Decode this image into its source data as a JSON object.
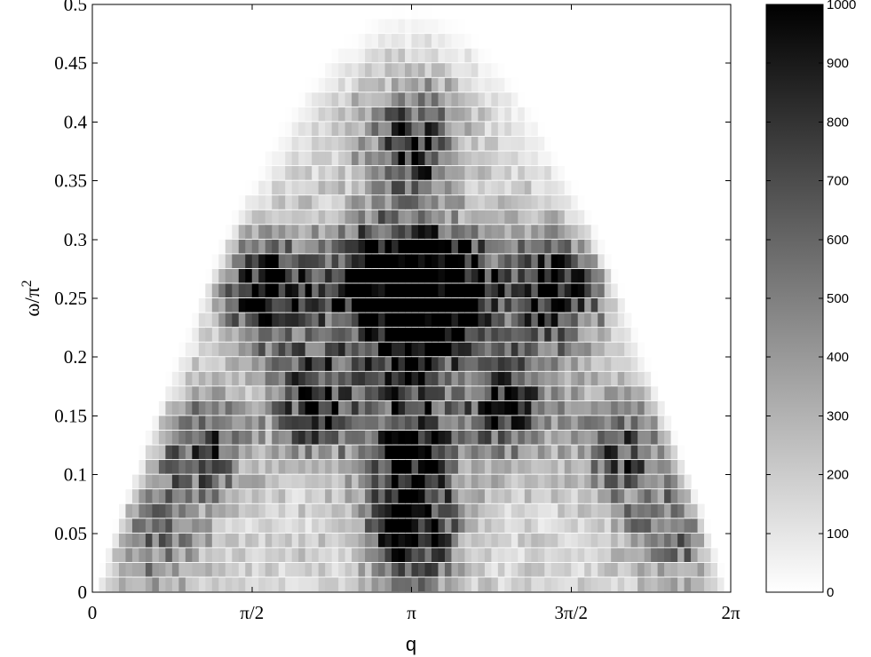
{
  "chart_data": {
    "type": "heatmap",
    "title": "",
    "xlabel": "q",
    "ylabel_base": "ω/π",
    "ylabel_exponent": "2",
    "xlim": [
      0,
      6.283185307
    ],
    "ylim": [
      0,
      0.5
    ],
    "x_ticks": [
      {
        "value": 0,
        "label": "0"
      },
      {
        "value": 1.570796327,
        "label": "π/2"
      },
      {
        "value": 3.141592654,
        "label": "π"
      },
      {
        "value": 4.71238898,
        "label": "3π/2"
      },
      {
        "value": 6.283185307,
        "label": "2π"
      }
    ],
    "y_ticks": [
      {
        "value": 0,
        "label": "0"
      },
      {
        "value": 0.05,
        "label": "0.05"
      },
      {
        "value": 0.1,
        "label": "0.1"
      },
      {
        "value": 0.15,
        "label": "0.15"
      },
      {
        "value": 0.2,
        "label": "0.2"
      },
      {
        "value": 0.25,
        "label": "0.25"
      },
      {
        "value": 0.3,
        "label": "0.3"
      },
      {
        "value": 0.35,
        "label": "0.35"
      },
      {
        "value": 0.4,
        "label": "0.4"
      },
      {
        "value": 0.45,
        "label": "0.45"
      },
      {
        "value": 0.5,
        "label": "0.5"
      }
    ],
    "colormap": "gray (reversed: white = 0, black = 1000)",
    "colorbar": {
      "range": [
        0,
        1000
      ],
      "ticks": [
        0,
        100,
        200,
        300,
        400,
        500,
        600,
        700,
        800,
        900,
        1000
      ],
      "tick_labels": [
        "0",
        "100",
        "200",
        "300",
        "400",
        "500",
        "600",
        "700",
        "800",
        "900",
        "1000"
      ]
    },
    "upper_boundary": "ω/π² ≈ 0.5·sin(q/2), intensity zero above it",
    "ridges": [
      {
        "q": 3.14,
        "w": 0.05,
        "value": 1000
      },
      {
        "q": 3.14,
        "w": 0.12,
        "value": 950
      },
      {
        "q": 3.14,
        "w": 0.21,
        "value": 900
      },
      {
        "q": 3.14,
        "w": 0.27,
        "value": 1000
      },
      {
        "q": 3.14,
        "w": 0.38,
        "value": 800
      },
      {
        "q": 2.2,
        "w": 0.16,
        "value": 820
      },
      {
        "q": 4.1,
        "w": 0.16,
        "value": 820
      },
      {
        "q": 1.73,
        "w": 0.255,
        "value": 1000
      },
      {
        "q": 4.55,
        "w": 0.255,
        "value": 1000
      },
      {
        "q": 2.63,
        "w": 0.26,
        "value": 850
      },
      {
        "q": 3.66,
        "w": 0.26,
        "value": 850
      },
      {
        "q": 1.1,
        "w": 0.12,
        "value": 600
      },
      {
        "q": 5.2,
        "w": 0.12,
        "value": 600
      },
      {
        "q": 0.6,
        "w": 0.05,
        "value": 450
      },
      {
        "q": 5.7,
        "w": 0.05,
        "value": 450
      }
    ]
  }
}
